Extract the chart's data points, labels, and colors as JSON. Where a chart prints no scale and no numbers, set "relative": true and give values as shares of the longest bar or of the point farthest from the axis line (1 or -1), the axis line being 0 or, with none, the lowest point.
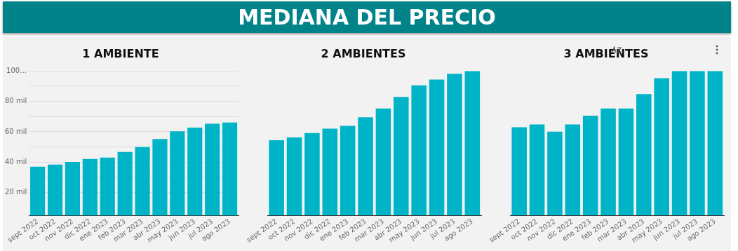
{
  "chart_data": [
    {
      "type": "other",
      "title": "MEDIANA DEL PRECIO"
    },
    {
      "type": "bar",
      "title": "1 AMBIENTE",
      "categories": [
        "sept 2022",
        "oct 2022",
        "nov 2022",
        "dic 2022",
        "ene 2023",
        "feb 2023",
        "mar 2023",
        "abr 2023",
        "may 2023",
        "jun 2023",
        "jul 2023",
        "ago 2023"
      ],
      "values": [
        37.1,
        38.4,
        40.2,
        42.1,
        43,
        46.7,
        50,
        55.2,
        60.3,
        62.7,
        65.3,
        66.1
      ],
      "color": "#00b4c8",
      "ylim": [
        5,
        100
      ],
      "yticks": [
        {
          "value": 10,
          "label": null
        },
        {
          "value": 20,
          "label": "20 mil"
        },
        {
          "value": 30,
          "label": null
        },
        {
          "value": 40,
          "label": "40 mil"
        },
        {
          "value": 50,
          "label": null
        },
        {
          "value": 60,
          "label": "60 mil"
        },
        {
          "value": 70,
          "label": null
        },
        {
          "value": 80,
          "label": "80 mil"
        },
        {
          "value": 90,
          "label": null
        },
        {
          "value": 100,
          "label": "100…"
        }
      ],
      "grid": "y"
    },
    {
      "type": "bar",
      "title": "2 AMBIENTES",
      "categories": [
        "sept 2022",
        "oct 2022",
        "nov 2022",
        "dic 2022",
        "ene 2023",
        "feb 2023",
        "mar 2023",
        "abr 2023",
        "may 2023",
        "jun 2023",
        "jul 2023",
        "ago 2023"
      ],
      "values": [
        0.52,
        0.54,
        0.57,
        0.6,
        0.62,
        0.68,
        0.74,
        0.82,
        0.9,
        0.94,
        0.98,
        1
      ],
      "color": "#00b4c8",
      "relative": true
    },
    {
      "type": "bar",
      "title": "3 AMBIENTES",
      "categories": [
        "sept 2022",
        "oct 2022",
        "nov 2022",
        "dic 2022",
        "ene 2023",
        "feb 2023",
        "mar 2023",
        "abr 2023",
        "may 2023",
        "jun 2023",
        "jul 2023",
        "ago 2023"
      ],
      "values": [
        0.61,
        0.63,
        0.58,
        0.63,
        0.69,
        0.74,
        0.74,
        0.84,
        0.95,
        1,
        1,
        1
      ],
      "color": "#00b4c8",
      "relative": true
    }
  ]
}
